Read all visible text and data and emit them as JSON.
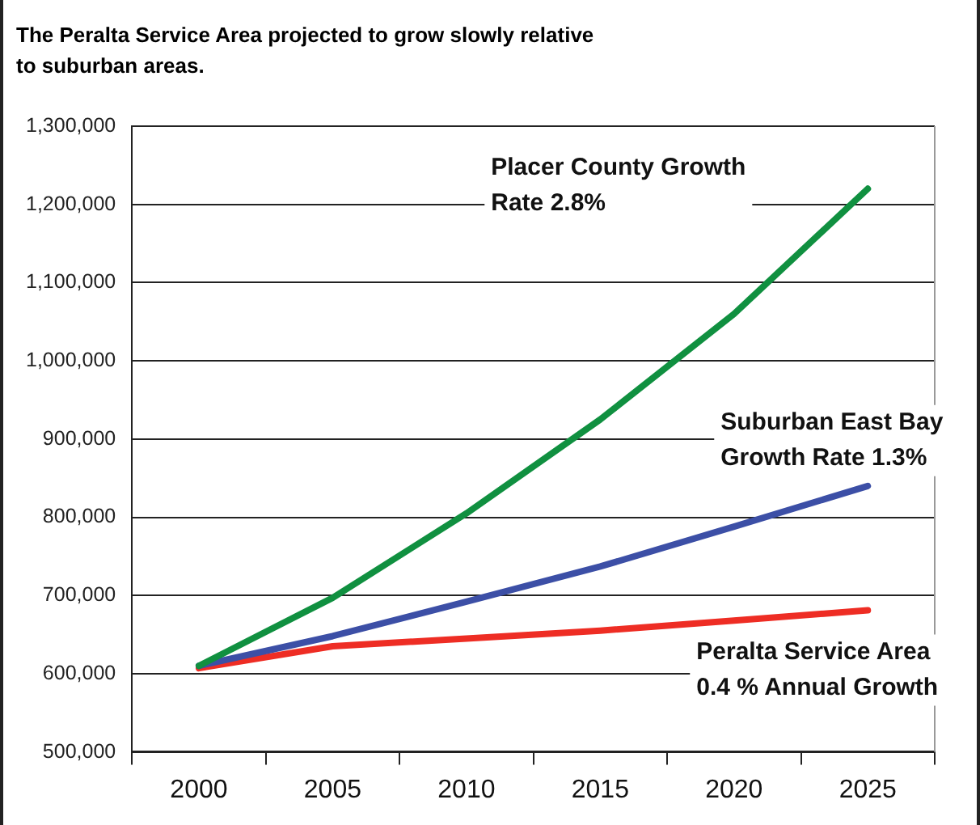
{
  "chart_data": {
    "type": "line",
    "title": "The Peralta Service Area projected to grow slowly relative to suburban areas.",
    "categories": [
      "2000",
      "2005",
      "2010",
      "2015",
      "2020",
      "2025"
    ],
    "series": [
      {
        "name": "Placer County Growth Rate 2.8%",
        "color": "#109040",
        "values": [
          610000,
          697000,
          805000,
          925000,
          1060000,
          1220000
        ]
      },
      {
        "name": "Suburban East Bay Growth Rate 1.3%",
        "color": "#3c4fa6",
        "values": [
          610000,
          648000,
          692000,
          737000,
          788000,
          840000
        ]
      },
      {
        "name": "Peralta Service Area 0.4 % Annual Growth",
        "color": "#ee2d24",
        "values": [
          607000,
          635000,
          645000,
          655000,
          668000,
          681000
        ]
      }
    ],
    "ylim": [
      500000,
      1300000
    ],
    "yticks": [
      {
        "value": 500000,
        "label": "500,000"
      },
      {
        "value": 600000,
        "label": "600,000"
      },
      {
        "value": 700000,
        "label": "700,000"
      },
      {
        "value": 800000,
        "label": "800,000"
      },
      {
        "value": 900000,
        "label": "900,000"
      },
      {
        "value": 1000000,
        "label": "1,000,000"
      },
      {
        "value": 1100000,
        "label": "1,100,000"
      },
      {
        "value": 1200000,
        "label": "1,200,000"
      },
      {
        "value": 1300000,
        "label": "1,300,000"
      }
    ],
    "grid": "y",
    "legend": false,
    "marker": "none",
    "line_style": "solid"
  }
}
